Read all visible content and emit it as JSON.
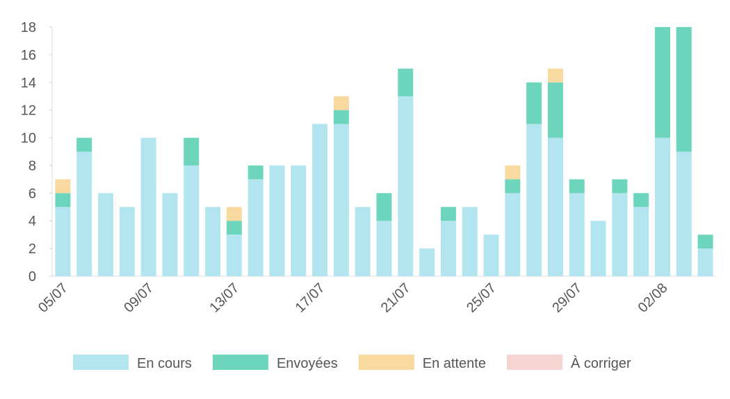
{
  "chart_data": {
    "type": "stacked-bar",
    "categories": [
      "05/07",
      null,
      null,
      null,
      "09/07",
      null,
      null,
      null,
      "13/07",
      null,
      null,
      null,
      "17/07",
      null,
      null,
      null,
      "21/07",
      null,
      null,
      null,
      "25/07",
      null,
      null,
      null,
      "29/07",
      null,
      null,
      null,
      "02/08",
      null,
      null
    ],
    "series": [
      {
        "name": "En cours",
        "color": "#b3e5f0",
        "values": [
          5,
          9,
          6,
          5,
          10,
          6,
          8,
          5,
          3,
          7,
          8,
          8,
          11,
          11,
          5,
          4,
          13,
          2,
          4,
          5,
          3,
          6,
          11,
          10,
          6,
          4,
          6,
          5,
          10,
          9,
          2
        ]
      },
      {
        "name": "Envoyées",
        "color": "#6dd5bc",
        "values": [
          1,
          1,
          0,
          0,
          0,
          0,
          2,
          0,
          1,
          1,
          0,
          0,
          0,
          1,
          0,
          2,
          2,
          0,
          1,
          0,
          0,
          1,
          3,
          4,
          1,
          0,
          1,
          1,
          8,
          9,
          1
        ]
      },
      {
        "name": "En attente",
        "color": "#f8d9a0",
        "values": [
          1,
          0,
          0,
          0,
          0,
          0,
          0,
          0,
          1,
          0,
          0,
          0,
          0,
          1,
          0,
          0,
          0,
          0,
          0,
          0,
          0,
          1,
          0,
          1,
          0,
          0,
          0,
          0,
          0,
          0,
          0
        ]
      },
      {
        "name": "À corriger",
        "color": "#f6d4d2",
        "values": [
          0,
          0,
          0,
          0,
          0,
          0,
          0,
          0,
          0,
          0,
          0,
          0,
          0,
          0,
          0,
          0,
          0,
          0,
          0,
          0,
          0,
          0,
          0,
          0,
          0,
          0,
          0,
          0,
          0,
          0,
          0
        ]
      }
    ],
    "ylim": [
      0,
      18
    ],
    "yticks": [
      0,
      2,
      4,
      6,
      8,
      10,
      12,
      14,
      16,
      18
    ],
    "grid": false,
    "legend": "bottom"
  }
}
